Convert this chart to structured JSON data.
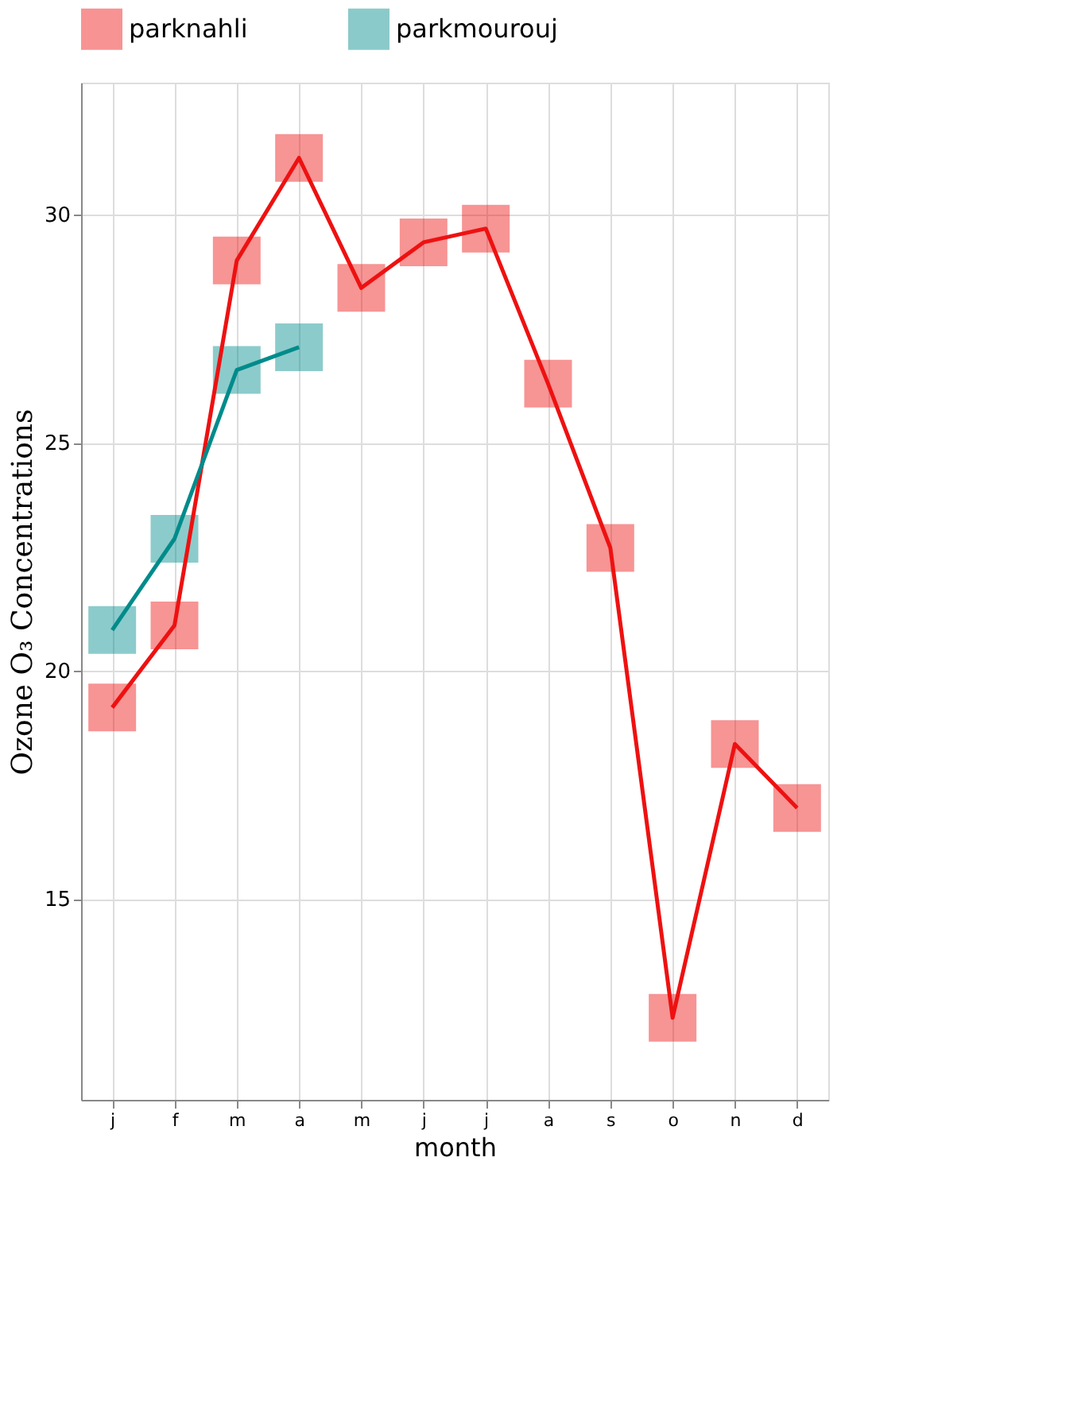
{
  "chart_data": {
    "type": "line",
    "xlabel": "month",
    "ylabel": "Ozone O₃ Concentrations",
    "categories": [
      "j",
      "f",
      "m",
      "a",
      "m",
      "j",
      "j",
      "a",
      "s",
      "o",
      "n",
      "d"
    ],
    "series": [
      {
        "name": "parknahli",
        "color": "#ee1111",
        "values": [
          19.2,
          21.0,
          29.0,
          31.25,
          28.4,
          29.4,
          29.7,
          26.3,
          22.7,
          12.4,
          18.4,
          17.0
        ]
      },
      {
        "name": "parkmourouj",
        "color": "#008b8b",
        "values": [
          20.9,
          22.9,
          26.6,
          27.1,
          null,
          null,
          null,
          null,
          null,
          null,
          null,
          null
        ]
      }
    ],
    "ylim": [
      10.6,
      32.9
    ],
    "yticks": [
      15,
      20,
      25,
      30
    ],
    "grid": true,
    "legend": "top",
    "marker": "square",
    "line_style": "solid"
  }
}
